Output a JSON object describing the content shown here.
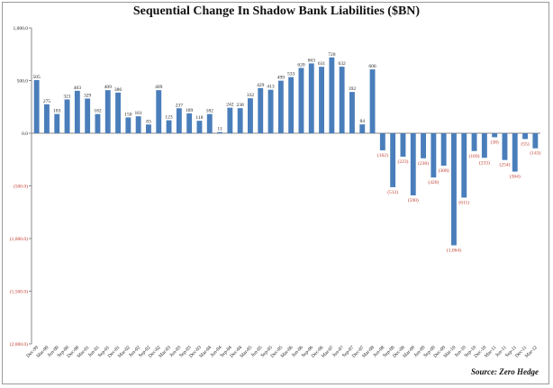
{
  "chart_data": {
    "type": "bar",
    "title": "Sequential Change In Shadow Bank Liabilities ($BN)",
    "source": "Source: Zero Hedge",
    "ylim": [
      -2000,
      1000
    ],
    "yticks": [
      1000,
      500,
      0,
      -500,
      -1000,
      -1500,
      -2000
    ],
    "ytick_labels": [
      "1,000.0",
      "500.0",
      "0.0",
      "(500.0)",
      "(1,000.0)",
      "(1,500.0)",
      "(2,000.0)"
    ],
    "bar_color": "#4a7ebb",
    "positive_label_color": "#222222",
    "negative_label_color": "#c0392b",
    "grid": false,
    "categories": [
      "Dec-99",
      "Mar-00",
      "Jun-00",
      "Sep-00",
      "Dec-00",
      "Mar-01",
      "Jun-01",
      "Sep-01",
      "Dec-01",
      "Mar-02",
      "Jun-02",
      "Sep-02",
      "Dec-02",
      "Mar-03",
      "Jun-03",
      "Sep-03",
      "Dec-03",
      "Mar-04",
      "Jun-04",
      "Sep-04",
      "Dec-04",
      "Mar-05",
      "Jun-05",
      "Sep-05",
      "Dec-05",
      "Mar-06",
      "Jun-06",
      "Sep-06",
      "Dec-06",
      "Mar-07",
      "Jun-07",
      "Sep-07",
      "Dec-07",
      "Mar-08",
      "Jun-08",
      "Sep-08",
      "Dec-08",
      "Mar-09",
      "Jun-09",
      "Sep-09",
      "Dec-09",
      "Mar-10",
      "Jun-10",
      "Sep-10",
      "Dec-10",
      "Mar-11",
      "Jun-11",
      "Sep-11",
      "Dec-11",
      "Mar-12"
    ],
    "values": [
      505,
      275,
      183,
      321,
      403,
      329,
      182,
      409,
      386,
      150,
      161,
      83,
      409,
      123,
      237,
      189,
      118,
      182,
      11,
      242,
      238,
      332,
      429,
      413,
      499,
      533,
      620,
      663,
      631,
      720,
      632,
      392,
      84,
      606,
      -162,
      -512,
      -223,
      -590,
      -238,
      -420,
      -308,
      -1064,
      -611,
      -169,
      -233,
      -38,
      -254,
      -364,
      -55,
      -143
    ],
    "value_labels": [
      "505",
      "275",
      "183",
      "321",
      "403",
      "329",
      "182",
      "409",
      "386",
      "150",
      "161",
      "83",
      "409",
      "123",
      "237",
      "189",
      "118",
      "182",
      "11",
      "242",
      "238",
      "332",
      "429",
      "413",
      "499",
      "533",
      "620",
      "663",
      "631",
      "720",
      "632",
      "392",
      "84",
      "606",
      "(162)",
      "(512)",
      "(223)",
      "(590)",
      "(238)",
      "(420)",
      "(308)",
      "(1,064)",
      "(611)",
      "(169)",
      "(233)",
      "(38)",
      "(254)",
      "(364)",
      "(55)",
      "(143)"
    ]
  }
}
